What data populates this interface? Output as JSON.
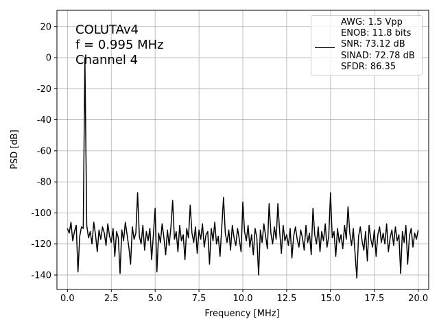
{
  "chart_data": {
    "type": "line",
    "xlabel": "Frequency [MHz]",
    "ylabel": "PSD [dB]",
    "annotations": [
      "COLUTAv4",
      "f = 0.995 MHz",
      "Channel 4"
    ],
    "x": [
      0,
      0.1,
      0.2,
      0.3,
      0.4,
      0.5,
      0.6,
      0.7,
      0.8,
      0.9,
      0.995,
      1.1,
      1.2,
      1.3,
      1.4,
      1.5,
      1.6,
      1.7,
      1.8,
      1.9,
      2.0,
      2.1,
      2.2,
      2.3,
      2.4,
      2.5,
      2.6,
      2.7,
      2.8,
      2.9,
      3.0,
      3.1,
      3.2,
      3.3,
      3.4,
      3.5,
      3.6,
      3.7,
      3.8,
      3.9,
      4.0,
      4.1,
      4.2,
      4.3,
      4.4,
      4.5,
      4.6,
      4.7,
      4.8,
      4.9,
      5.0,
      5.1,
      5.2,
      5.3,
      5.4,
      5.5,
      5.6,
      5.7,
      5.8,
      5.9,
      6.0,
      6.1,
      6.2,
      6.3,
      6.4,
      6.5,
      6.6,
      6.7,
      6.8,
      6.9,
      7.0,
      7.1,
      7.2,
      7.3,
      7.4,
      7.5,
      7.6,
      7.7,
      7.8,
      7.9,
      8.0,
      8.1,
      8.2,
      8.3,
      8.4,
      8.5,
      8.6,
      8.7,
      8.8,
      8.9,
      9.0,
      9.1,
      9.2,
      9.3,
      9.4,
      9.5,
      9.6,
      9.7,
      9.8,
      9.9,
      10.0,
      10.1,
      10.2,
      10.3,
      10.4,
      10.5,
      10.6,
      10.7,
      10.8,
      10.9,
      11.0,
      11.1,
      11.2,
      11.3,
      11.4,
      11.5,
      11.6,
      11.7,
      11.8,
      11.9,
      12.0,
      12.1,
      12.2,
      12.3,
      12.4,
      12.5,
      12.6,
      12.7,
      12.8,
      12.9,
      13.0,
      13.1,
      13.2,
      13.3,
      13.4,
      13.5,
      13.6,
      13.7,
      13.8,
      13.9,
      14.0,
      14.1,
      14.2,
      14.3,
      14.4,
      14.5,
      14.6,
      14.7,
      14.8,
      14.9,
      15.0,
      15.1,
      15.2,
      15.3,
      15.4,
      15.5,
      15.6,
      15.7,
      15.8,
      15.9,
      16.0,
      16.1,
      16.2,
      16.3,
      16.4,
      16.5,
      16.6,
      16.7,
      16.8,
      16.9,
      17.0,
      17.1,
      17.2,
      17.3,
      17.4,
      17.5,
      17.6,
      17.7,
      17.8,
      17.9,
      18.0,
      18.1,
      18.2,
      18.3,
      18.4,
      18.5,
      18.6,
      18.7,
      18.8,
      18.9,
      19.0,
      19.1,
      19.2,
      19.3,
      19.4,
      19.5,
      19.6,
      19.7,
      19.8,
      19.9,
      20.0
    ],
    "series": [
      {
        "name": "AWG: 1.5 Vpp\nENOB: 11.8 bits\nSNR: 73.12 dB\nSINAD: 72.78 dB\nSFDR: 86.35",
        "color": "#000000",
        "values": [
          -110,
          -113,
          -106,
          -118,
          -112,
          -108,
          -138,
          -115,
          -109,
          -110,
          0,
          -108,
          -116,
          -112,
          -120,
          -106,
          -114,
          -125,
          -111,
          -117,
          -109,
          -113,
          -121,
          -107,
          -115,
          -119,
          -110,
          -128,
          -112,
          -116,
          -139,
          -111,
          -118,
          -106,
          -114,
          -122,
          -133,
          -109,
          -117,
          -113,
          -87,
          -115,
          -120,
          -108,
          -124,
          -112,
          -118,
          -110,
          -130,
          -114,
          -97,
          -138,
          -113,
          -119,
          -107,
          -116,
          -127,
          -111,
          -121,
          -109,
          -92,
          -117,
          -112,
          -125,
          -108,
          -118,
          -114,
          -130,
          -110,
          -116,
          -95,
          -113,
          -119,
          -109,
          -126,
          -111,
          -117,
          -107,
          -122,
          -114,
          -112,
          -133,
          -110,
          -118,
          -106,
          -120,
          -115,
          -128,
          -109,
          -90,
          -113,
          -119,
          -111,
          -124,
          -108,
          -116,
          -121,
          -110,
          -117,
          -125,
          -93,
          -112,
          -118,
          -108,
          -122,
          -114,
          -127,
          -110,
          -116,
          -140,
          -111,
          -119,
          -107,
          -115,
          -123,
          -94,
          -113,
          -120,
          -109,
          -117,
          -94,
          -112,
          -126,
          -108,
          -118,
          -114,
          -121,
          -110,
          -129,
          -115,
          -109,
          -117,
          -122,
          -111,
          -116,
          -124,
          -108,
          -119,
          -113,
          -127,
          -97,
          -114,
          -120,
          -109,
          -125,
          -112,
          -118,
          -107,
          -122,
          -115,
          -87,
          -116,
          -112,
          -128,
          -110,
          -119,
          -114,
          -123,
          -108,
          -117,
          -96,
          -113,
          -121,
          -110,
          -126,
          -142,
          -115,
          -109,
          -118,
          -124,
          -112,
          -131,
          -108,
          -117,
          -122,
          -111,
          -128,
          -114,
          -109,
          -119,
          -113,
          -120,
          -107,
          -125,
          -116,
          -111,
          -121,
          -109,
          -118,
          -114,
          -139,
          -112,
          -119,
          -108,
          -133,
          -115,
          -110,
          -122,
          -113,
          -117,
          -111
        ]
      }
    ],
    "xlim": [
      -0.6,
      20.6
    ],
    "ylim": [
      -149.3,
      30.5
    ],
    "xticks": [
      {
        "value": 0,
        "label": "0.0"
      },
      2.5,
      {
        "value": 5,
        "label": "5.0"
      },
      7.5,
      {
        "value": 10,
        "label": "10.0"
      },
      12.5,
      {
        "value": 15,
        "label": "15.0"
      },
      17.5,
      {
        "value": 20,
        "label": "20.0"
      }
    ],
    "yticks": [
      -140,
      -120,
      -100,
      -80,
      -60,
      -40,
      -20,
      0,
      20
    ],
    "grid": true
  }
}
